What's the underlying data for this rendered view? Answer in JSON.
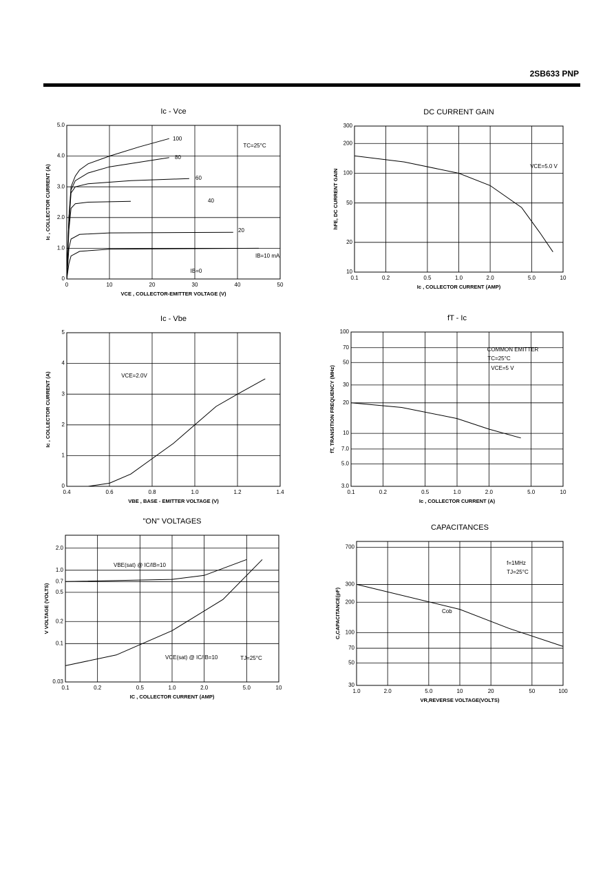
{
  "header": {
    "title": "2SB633  PNP"
  },
  "chart_data": [
    {
      "type": "line",
      "title": "Ic - Vce",
      "x_label": "VCE , COLLECTOR-EMITTER VOLTAGE (V)",
      "y_label": "Ic , COLLECTOR CURRENT (A)",
      "xlim": [
        0,
        50
      ],
      "xticks": [
        0,
        10,
        20,
        30,
        40,
        50
      ],
      "ylim": [
        0,
        5
      ],
      "yticks": [
        0,
        {
          "value": 1,
          "label": "1.0"
        },
        {
          "value": 2,
          "label": "2.0"
        },
        {
          "value": 3,
          "label": "3.0"
        },
        {
          "value": 4,
          "label": "4.0"
        },
        {
          "value": 5,
          "label": "5.0"
        }
      ],
      "grid": true,
      "annotations": [
        "TC=25°C",
        "IB=0"
      ],
      "series": [
        {
          "name": "100",
          "x": [
            0,
            0.5,
            1,
            2,
            3,
            5,
            10,
            17,
            24
          ],
          "values": [
            0,
            2.0,
            3.0,
            3.35,
            3.55,
            3.75,
            4.0,
            4.3,
            4.57
          ]
        },
        {
          "name": "80",
          "x": [
            0,
            0.5,
            1,
            2,
            5,
            10,
            17,
            24
          ],
          "values": [
            0,
            2.0,
            2.9,
            3.2,
            3.45,
            3.65,
            3.8,
            3.95
          ]
        },
        {
          "name": "60",
          "x": [
            0,
            0.5,
            1,
            2,
            5,
            15,
            28.7
          ],
          "values": [
            0,
            1.8,
            2.8,
            3.0,
            3.1,
            3.2,
            3.27
          ]
        },
        {
          "name": "40",
          "x": [
            0,
            0.5,
            1,
            2,
            5,
            15
          ],
          "values": [
            0,
            1.6,
            2.3,
            2.45,
            2.5,
            2.53
          ]
        },
        {
          "name": "20",
          "x": [
            0,
            0.5,
            1,
            3,
            10,
            39
          ],
          "values": [
            0,
            1.0,
            1.3,
            1.45,
            1.5,
            1.52
          ]
        },
        {
          "name": "IB=10 mA",
          "x": [
            0,
            0.5,
            1,
            3,
            10,
            45
          ],
          "values": [
            0,
            0.5,
            0.75,
            0.9,
            0.97,
            1.0
          ]
        }
      ]
    },
    {
      "type": "line",
      "title": "DC CURRENT GAIN",
      "x_label": "Ic , COLLECTOR CURRENT (AMP)",
      "y_label": "hFE, DC CURRENT GAIN",
      "xlog": true,
      "ylog": true,
      "xlim": [
        0.1,
        10
      ],
      "xticks": [
        0.1,
        0.2,
        0.5,
        {
          "value": 1,
          "label": "1.0"
        },
        {
          "value": 2,
          "label": "2.0"
        },
        {
          "value": 5,
          "label": "5.0"
        },
        10
      ],
      "ylim": [
        10,
        300
      ],
      "yticks": [
        10,
        20,
        50,
        100,
        200,
        300
      ],
      "grid": true,
      "annotations": [
        "VCE=5.0 V"
      ],
      "series": [
        {
          "name": null,
          "x": [
            0.1,
            0.3,
            1,
            2,
            4,
            6,
            8
          ],
          "values": [
            150,
            130,
            100,
            75,
            45,
            25,
            16
          ]
        }
      ]
    },
    {
      "type": "line",
      "title": "Ic - Vbe",
      "x_label": "VBE , BASE - EMITTER VOLTAGE  (V)",
      "y_label": "Ic , COLLECTOR CURRENT  (A)",
      "xlim": [
        0.4,
        1.4
      ],
      "xticks": [
        0.4,
        0.6,
        0.8,
        {
          "value": 1,
          "label": "1.0"
        },
        1.2,
        1.4
      ],
      "ylim": [
        0,
        5
      ],
      "yticks": [
        0,
        1,
        2,
        3,
        4,
        5
      ],
      "grid": true,
      "annotations": [
        "VCE=2.0V"
      ],
      "series": [
        {
          "name": null,
          "x": [
            0.5,
            0.6,
            0.7,
            0.8,
            0.9,
            1.0,
            1.1,
            1.2,
            1.33
          ],
          "values": [
            0,
            0.1,
            0.4,
            0.9,
            1.4,
            2.0,
            2.6,
            3.0,
            3.5
          ]
        }
      ]
    },
    {
      "type": "line",
      "title": "fT - Ic",
      "x_label": "Ic , COLLECTOR  CURRENT  (A)",
      "y_label": "fT, TRANSITION  FREQUENCY  (MHz)",
      "xlog": true,
      "ylog": true,
      "xlim": [
        0.1,
        10
      ],
      "xticks": [
        0.1,
        0.2,
        0.5,
        {
          "value": 1,
          "label": "1.0"
        },
        {
          "value": 2,
          "label": "2.0"
        },
        {
          "value": 5,
          "label": "5.0"
        },
        10
      ],
      "ylim": [
        3,
        100
      ],
      "yticks": [
        {
          "value": 3,
          "label": "3.0"
        },
        {
          "value": 5,
          "label": "5.0"
        },
        {
          "value": 7,
          "label": "7.0"
        },
        10,
        20,
        30,
        50,
        70,
        100
      ],
      "grid": true,
      "annotations": [
        "COMMON EMITTER",
        "TC=25°C",
        "VCE=5 V"
      ],
      "series": [
        {
          "name": null,
          "x": [
            0.1,
            0.3,
            1,
            2,
            4
          ],
          "values": [
            20,
            18,
            14,
            11,
            9
          ]
        }
      ]
    },
    {
      "type": "line",
      "title": "\"ON\" VOLTAGES",
      "x_label": "IC , COLLECTOR CURRENT (AMP)",
      "y_label": "V VOLTAGE (VOLTS)",
      "xlog": true,
      "ylog": true,
      "xlim": [
        0.1,
        10
      ],
      "xticks": [
        0.1,
        0.2,
        0.5,
        {
          "value": 1,
          "label": "1.0"
        },
        {
          "value": 2,
          "label": "2.0"
        },
        {
          "value": 5,
          "label": "5.0"
        },
        10
      ],
      "ylim": [
        0.03,
        3
      ],
      "yticks": [
        0.03,
        0.1,
        0.2,
        0.5,
        0.7,
        {
          "value": 1,
          "label": "1.0"
        },
        {
          "value": 2,
          "label": "2.0"
        }
      ],
      "grid": true,
      "annotations": [
        "TJ=25°C"
      ],
      "series": [
        {
          "name": "VBE(sat) @ IC/IB=10",
          "x": [
            0.1,
            1,
            2,
            5
          ],
          "values": [
            0.7,
            0.75,
            0.85,
            1.4
          ]
        },
        {
          "name": "VCE(sat) @ IC/IB=10",
          "x": [
            0.1,
            0.3,
            1,
            3,
            7
          ],
          "values": [
            0.05,
            0.07,
            0.15,
            0.4,
            1.4
          ]
        }
      ]
    },
    {
      "type": "line",
      "title": "CAPACITANCES",
      "x_label": "VR,REVERSE VOLTAGE(VOLTS)",
      "y_label": "C,CAPACITANCE(pF)",
      "xlog": true,
      "ylog": true,
      "xlim": [
        1,
        100
      ],
      "xticks": [
        {
          "value": 1,
          "label": "1.0"
        },
        {
          "value": 2,
          "label": "2.0"
        },
        {
          "value": 5,
          "label": "5.0"
        },
        10,
        20,
        50,
        100
      ],
      "ylim": [
        30,
        800
      ],
      "yticks": [
        30,
        50,
        70,
        100,
        200,
        300,
        700
      ],
      "grid": true,
      "annotations": [
        "f=1MHz",
        "TJ=25°C"
      ],
      "series": [
        {
          "name": "Cob",
          "x": [
            1,
            10,
            30,
            100
          ],
          "values": [
            300,
            170,
            110,
            73
          ]
        }
      ]
    }
  ]
}
